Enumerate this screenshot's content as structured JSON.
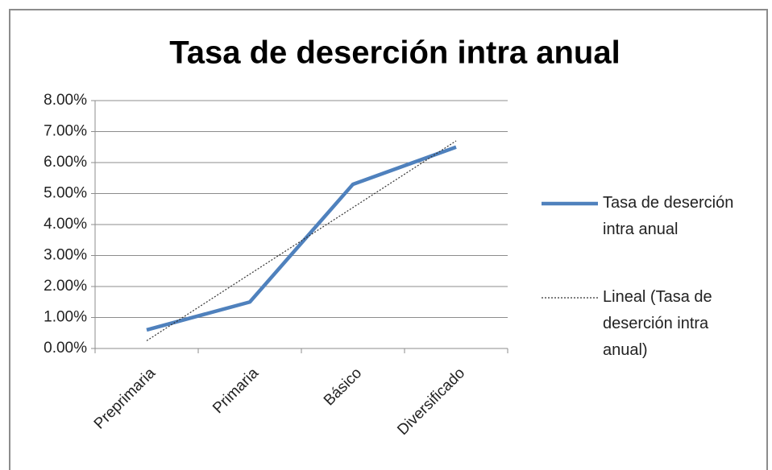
{
  "chart_data": {
    "type": "line",
    "title": "Tasa de deserción intra anual",
    "categories": [
      "Preprimaria",
      "Primaria",
      "Básico",
      "Diversificado"
    ],
    "series": [
      {
        "name": "Tasa de deserción intra anual",
        "color": "#4f81bd",
        "values": [
          0.6,
          1.5,
          5.3,
          6.5
        ]
      },
      {
        "name": "Lineal (Tasa de deserción intra anual)",
        "color": "#333333",
        "values": [
          0.25,
          2.4,
          4.55,
          6.7
        ]
      }
    ],
    "ylim": [
      0,
      8
    ],
    "yticks": [
      {
        "value": 0,
        "label": "0.00%"
      },
      {
        "value": 1,
        "label": "1.00%"
      },
      {
        "value": 2,
        "label": "2.00%"
      },
      {
        "value": 3,
        "label": "3.00%"
      },
      {
        "value": 4,
        "label": "4.00%"
      },
      {
        "value": 5,
        "label": "5.00%"
      },
      {
        "value": 6,
        "label": "6.00%"
      },
      {
        "value": 7,
        "label": "7.00%"
      },
      {
        "value": 8,
        "label": "8.00%"
      }
    ],
    "grid": true,
    "legend": "right"
  }
}
